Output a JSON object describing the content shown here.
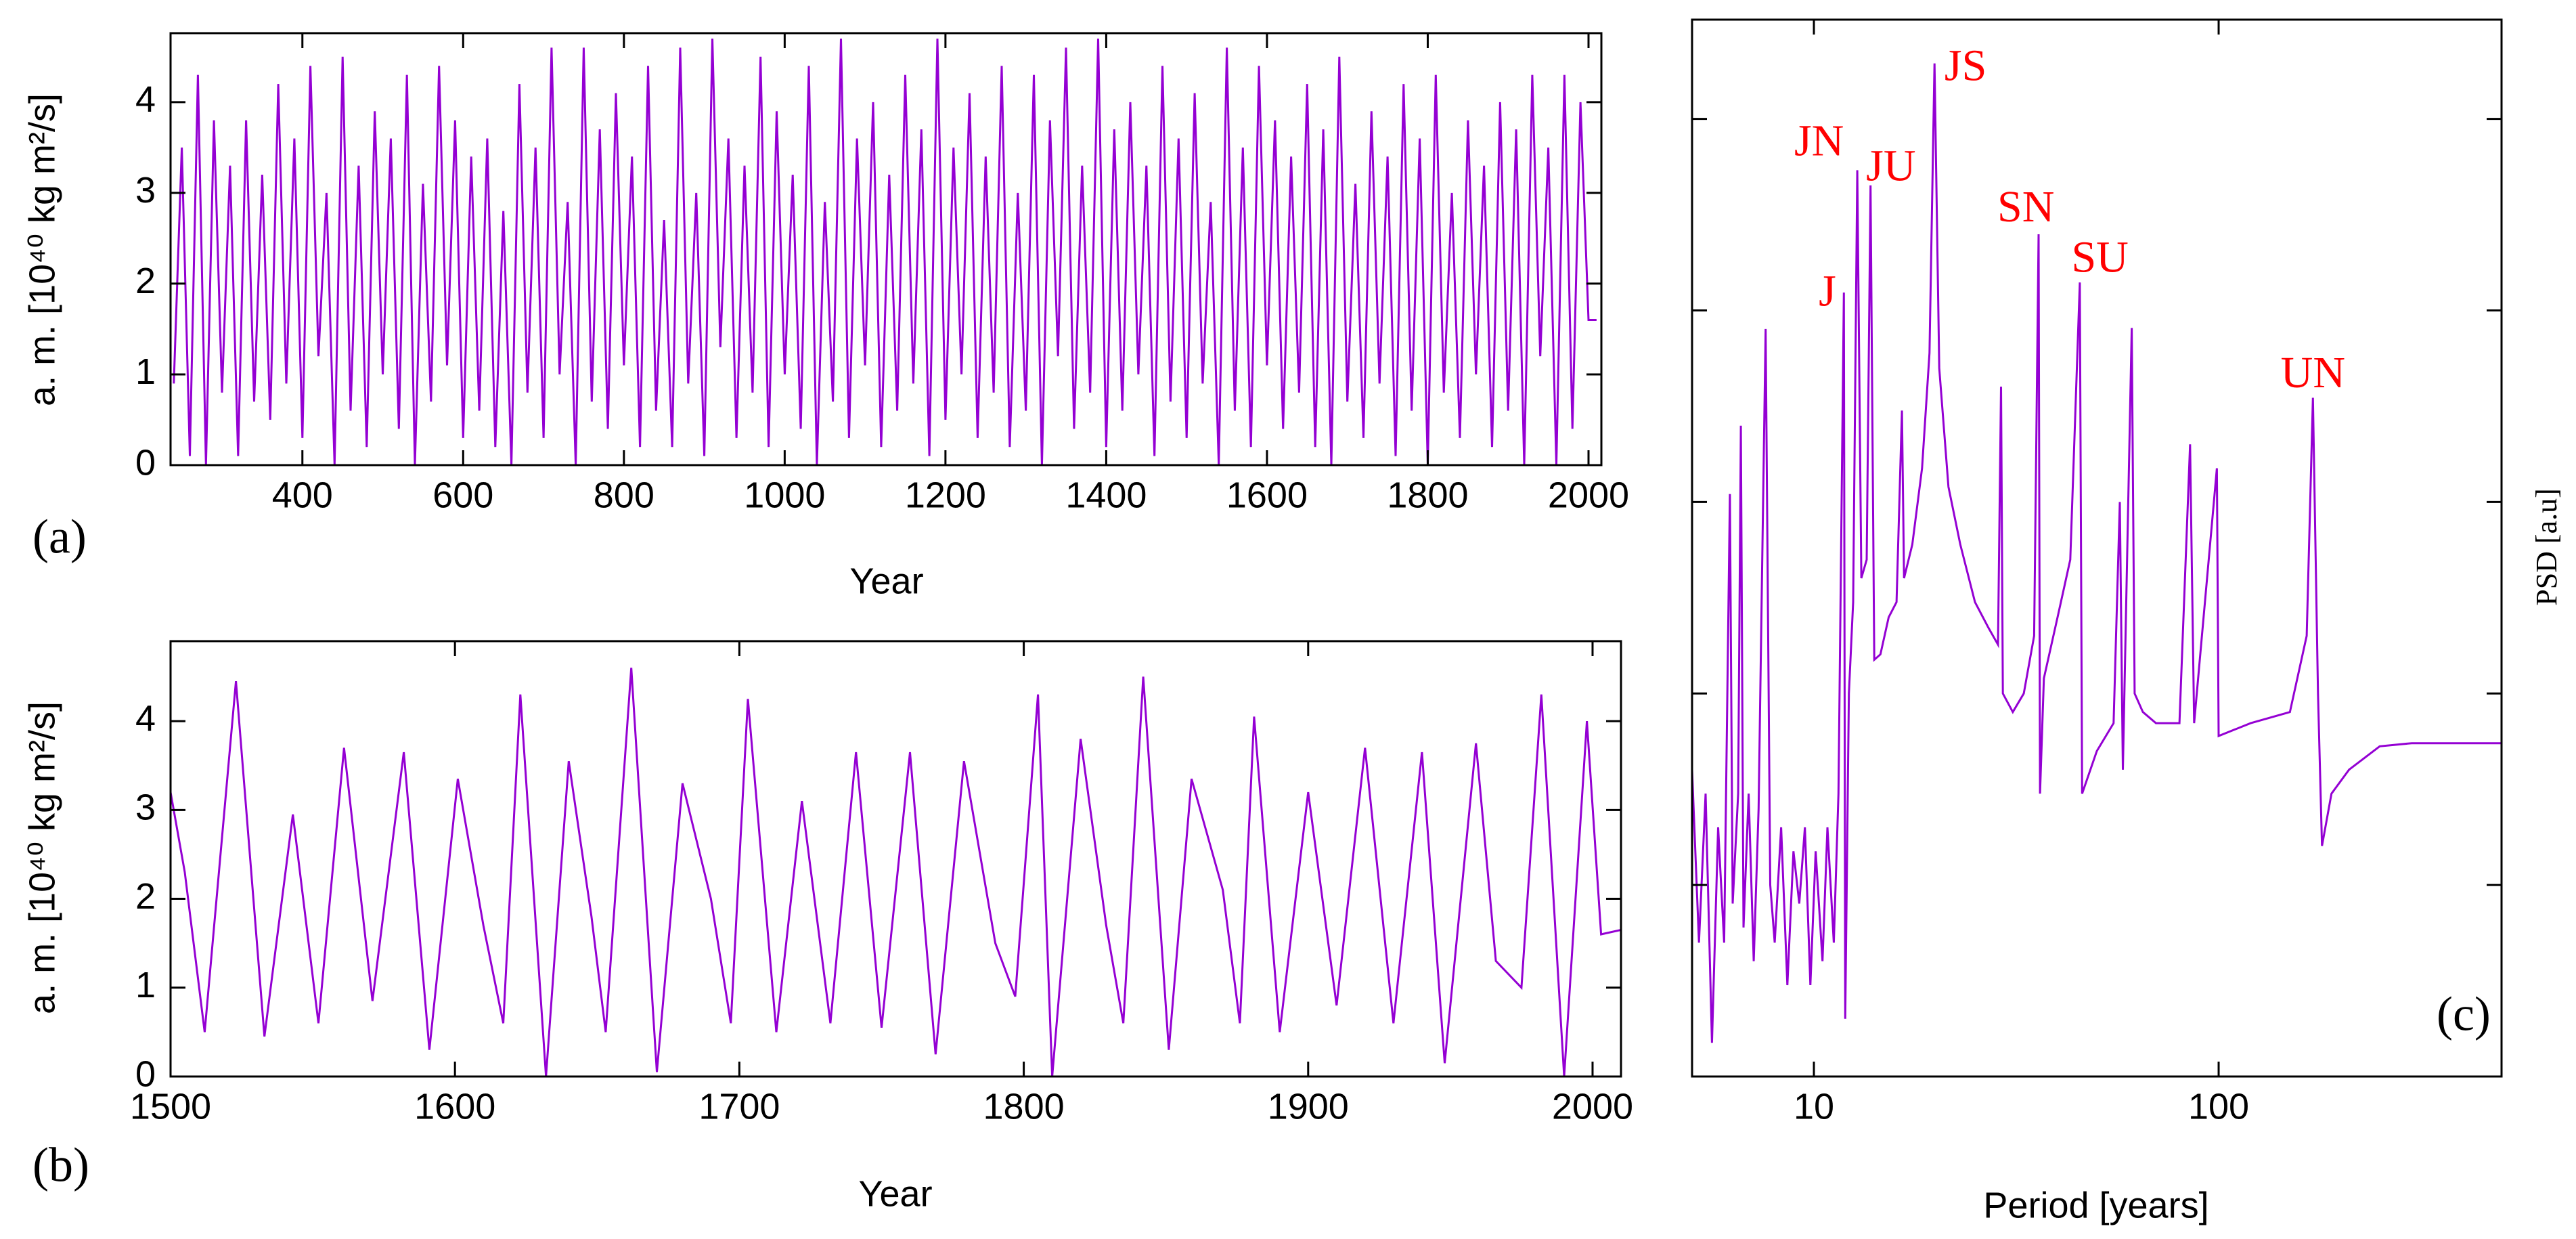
{
  "chart_data": [
    {
      "type": "line",
      "panel_label": "(a)",
      "xlabel": "Year",
      "ylabel": "a. m. [10⁴⁰ kg m²/s]",
      "color": "#9400d3",
      "xlim": [
        236,
        2016
      ],
      "xticks": [
        400,
        600,
        800,
        1000,
        1200,
        1400,
        1600,
        1800,
        2000
      ],
      "ylim": [
        0,
        4.76
      ],
      "yticks": [
        0,
        1,
        2,
        3,
        4
      ],
      "x": [
        240,
        250,
        260,
        270,
        280,
        290,
        300,
        310,
        320,
        330,
        340,
        350,
        360,
        370,
        380,
        390,
        400,
        410,
        420,
        430,
        440,
        450,
        460,
        470,
        480,
        490,
        500,
        510,
        520,
        530,
        540,
        550,
        560,
        570,
        580,
        590,
        600,
        610,
        620,
        630,
        640,
        650,
        660,
        670,
        680,
        690,
        700,
        710,
        720,
        730,
        740,
        750,
        760,
        770,
        780,
        790,
        800,
        810,
        820,
        830,
        840,
        850,
        860,
        870,
        880,
        890,
        900,
        910,
        920,
        930,
        940,
        950,
        960,
        970,
        980,
        990,
        1000,
        1010,
        1020,
        1030,
        1040,
        1050,
        1060,
        1070,
        1080,
        1090,
        1100,
        1110,
        1120,
        1130,
        1140,
        1150,
        1160,
        1170,
        1180,
        1190,
        1200,
        1210,
        1220,
        1230,
        1240,
        1250,
        1260,
        1270,
        1280,
        1290,
        1300,
        1310,
        1320,
        1330,
        1340,
        1350,
        1360,
        1370,
        1380,
        1390,
        1400,
        1410,
        1420,
        1430,
        1440,
        1450,
        1460,
        1470,
        1480,
        1490,
        1500,
        1510,
        1520,
        1530,
        1540,
        1550,
        1560,
        1570,
        1580,
        1590,
        1600,
        1610,
        1620,
        1630,
        1640,
        1650,
        1660,
        1670,
        1680,
        1690,
        1700,
        1710,
        1720,
        1730,
        1740,
        1750,
        1760,
        1770,
        1780,
        1790,
        1800,
        1810,
        1820,
        1830,
        1840,
        1850,
        1860,
        1870,
        1880,
        1890,
        1900,
        1910,
        1920,
        1930,
        1940,
        1950,
        1960,
        1970,
        1980,
        1990,
        2000,
        2010
      ],
      "values": [
        0.9,
        3.5,
        0.1,
        4.3,
        0.0,
        3.8,
        0.8,
        3.3,
        0.1,
        3.8,
        0.7,
        3.2,
        0.5,
        4.2,
        0.9,
        3.6,
        0.3,
        4.4,
        1.2,
        3.0,
        0.0,
        4.5,
        0.6,
        3.3,
        0.2,
        3.9,
        1.0,
        3.6,
        0.4,
        4.3,
        0.0,
        3.1,
        0.7,
        4.4,
        1.1,
        3.8,
        0.3,
        3.4,
        0.6,
        3.6,
        0.2,
        2.8,
        0.0,
        4.2,
        0.8,
        3.5,
        0.3,
        4.6,
        1.0,
        2.9,
        0.0,
        4.6,
        0.7,
        3.7,
        0.4,
        4.1,
        1.1,
        3.4,
        0.2,
        4.4,
        0.6,
        2.7,
        0.2,
        4.6,
        0.9,
        3.0,
        0.1,
        4.7,
        1.3,
        3.6,
        0.3,
        3.3,
        0.8,
        4.5,
        0.2,
        3.9,
        1.0,
        3.2,
        0.4,
        4.4,
        0.0,
        2.9,
        0.7,
        4.7,
        0.3,
        3.6,
        1.1,
        4.0,
        0.2,
        3.2,
        0.6,
        4.3,
        0.9,
        3.7,
        0.1,
        4.7,
        0.5,
        3.5,
        1.0,
        4.1,
        0.3,
        3.4,
        0.8,
        4.4,
        0.2,
        3.0,
        0.6,
        4.3,
        0.0,
        3.8,
        1.2,
        4.6,
        0.4,
        3.3,
        0.8,
        4.7,
        0.2,
        3.7,
        0.6,
        4.0,
        1.0,
        3.3,
        0.1,
        4.4,
        0.7,
        3.6,
        0.3,
        4.1,
        0.9,
        2.9,
        0.0,
        4.6,
        0.6,
        3.5,
        0.2,
        4.4,
        1.1,
        3.8,
        0.4,
        3.4,
        0.8,
        4.2,
        0.2,
        3.7,
        0.0,
        4.5,
        0.7,
        3.1,
        0.3,
        3.9,
        0.9,
        3.4,
        0.1,
        4.2,
        0.6,
        3.6,
        0.0,
        4.3,
        0.8,
        3.0,
        0.3,
        3.8,
        1.0,
        3.3,
        0.2,
        4.0,
        0.6,
        3.7,
        0.0,
        4.3,
        1.2,
        3.5,
        0.0,
        4.3,
        0.4,
        4.0,
        1.6,
        1.6
      ]
    },
    {
      "type": "line",
      "panel_label": "(b)",
      "xlabel": "Year",
      "ylabel": "a. m. [10⁴⁰ kg m²/s]",
      "color": "#9400d3",
      "xlim": [
        1500,
        2010
      ],
      "xticks": [
        1500,
        1600,
        1700,
        1800,
        1900,
        2000
      ],
      "ylim": [
        0,
        4.9
      ],
      "yticks": [
        0,
        1,
        2,
        3,
        4
      ],
      "x": [
        1500,
        1505,
        1512,
        1523,
        1533,
        1543,
        1552,
        1561,
        1571,
        1582,
        1591,
        1601,
        1610,
        1617,
        1623,
        1632,
        1640,
        1648,
        1653,
        1662,
        1671,
        1680,
        1690,
        1697,
        1703,
        1713,
        1722,
        1732,
        1741,
        1750,
        1760,
        1769,
        1779,
        1790,
        1797,
        1805,
        1810,
        1820,
        1829,
        1835,
        1842,
        1851,
        1859,
        1870,
        1876,
        1881,
        1890,
        1900,
        1910,
        1920,
        1930,
        1940,
        1948,
        1959,
        1966,
        1975,
        1982,
        1990,
        1998,
        2003,
        2010
      ],
      "values": [
        3.2,
        2.3,
        0.5,
        4.45,
        0.45,
        2.95,
        0.6,
        3.7,
        0.85,
        3.65,
        0.3,
        3.35,
        1.7,
        0.6,
        4.3,
        0,
        3.55,
        1.8,
        0.5,
        4.6,
        0.05,
        3.3,
        2.0,
        0.6,
        4.25,
        0.5,
        3.1,
        0.6,
        3.65,
        0.55,
        3.65,
        0.25,
        3.55,
        1.5,
        0.9,
        4.3,
        0,
        3.8,
        1.7,
        0.6,
        4.5,
        0.3,
        3.35,
        2.1,
        0.6,
        4.05,
        0.5,
        3.2,
        0.8,
        3.7,
        0.6,
        3.65,
        0.15,
        3.75,
        1.3,
        1.0,
        4.3,
        0,
        4.0,
        1.6,
        1.65
      ]
    },
    {
      "type": "line",
      "panel_label": "(c)",
      "xlabel": "Period [years]",
      "ylabel": "PSD [a.u]",
      "color": "#9400d3",
      "xlog": true,
      "ylog": true,
      "yticklabels": false,
      "xlim": [
        5,
        500
      ],
      "xticks": [
        10,
        100
      ],
      "ylim": [
        1e-05,
        3.3
      ],
      "yticks": [
        0.0001,
        0.001,
        0.01,
        0.1,
        1
      ],
      "x": [
        5.0,
        5.2,
        5.4,
        5.6,
        5.8,
        6.0,
        6.2,
        6.3,
        6.5,
        6.6,
        6.7,
        6.9,
        7.1,
        7.3,
        7.6,
        7.8,
        8.0,
        8.3,
        8.6,
        8.9,
        9.2,
        9.5,
        9.8,
        10.1,
        10.5,
        10.8,
        11.2,
        11.5,
        11.86,
        11.95,
        12.2,
        12.5,
        12.8,
        13.1,
        13.5,
        13.8,
        14.1,
        14.6,
        15.3,
        16,
        16.5,
        16.7,
        17.5,
        18.5,
        19.3,
        19.86,
        20.4,
        21.5,
        23,
        25,
        27,
        28.5,
        29,
        29.3,
        31,
        33,
        35,
        35.9,
        36.2,
        37,
        40,
        43,
        45.4,
        46,
        50,
        55,
        57,
        58,
        61,
        62,
        65,
        70,
        80,
        85,
        87,
        99,
        100,
        120,
        150,
        165,
        171,
        176,
        180,
        190,
        210,
        250,
        300,
        400,
        500
      ],
      "values": [
        0.0004,
        5e-05,
        0.0003,
        1.5e-05,
        0.0002,
        5e-05,
        0.011,
        8e-05,
        0.0003,
        0.025,
        6e-05,
        0.0003,
        4e-05,
        0.00025,
        0.08,
        0.0001,
        5e-05,
        0.0002,
        3e-05,
        0.00015,
        8e-05,
        0.0002,
        3e-05,
        0.00015,
        4e-05,
        0.0002,
        5e-05,
        0.0003,
        0.124,
        2e-05,
        0.001,
        0.003,
        0.54,
        0.004,
        0.005,
        0.45,
        0.0015,
        0.0016,
        0.0025,
        0.003,
        0.03,
        0.004,
        0.006,
        0.015,
        0.06,
        1.95,
        0.05,
        0.012,
        0.006,
        0.003,
        0.0022,
        0.0018,
        0.04,
        0.001,
        0.0008,
        0.001,
        0.002,
        0.25,
        0.0003,
        0.0012,
        0.0025,
        0.005,
        0.14,
        0.0003,
        0.0005,
        0.0007,
        0.01,
        0.0004,
        0.081,
        0.001,
        0.0008,
        0.0007,
        0.0007,
        0.02,
        0.0007,
        0.015,
        0.0006,
        0.0007,
        0.0008,
        0.002,
        0.035,
        0.001,
        0.00016,
        0.0003,
        0.0004,
        0.00053,
        0.00055,
        0.00055,
        0.00055
      ],
      "annotations": [
        {
          "text": "J",
          "x": 10.8,
          "y": 0.12
        },
        {
          "text": "JN",
          "x": 10.3,
          "y": 0.73
        },
        {
          "text": "JU",
          "x": 15.5,
          "y": 0.54
        },
        {
          "text": "JS",
          "x": 23.7,
          "y": 1.8
        },
        {
          "text": "SN",
          "x": 33.4,
          "y": 0.33
        },
        {
          "text": "SU",
          "x": 50.9,
          "y": 0.18
        },
        {
          "text": "UN",
          "x": 171,
          "y": 0.045
        }
      ],
      "annotation_color": "#ff0000"
    }
  ]
}
